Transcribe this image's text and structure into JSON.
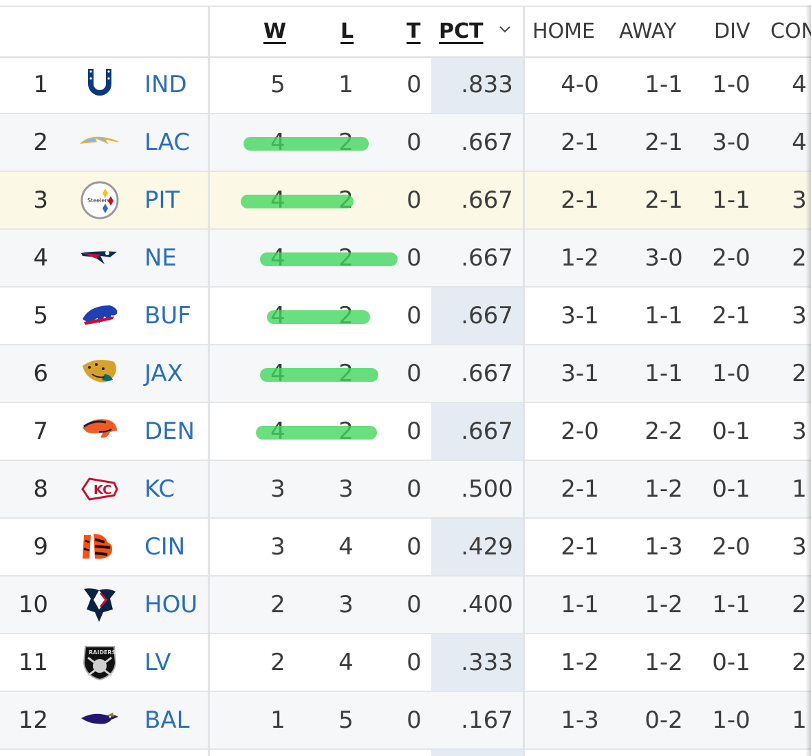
{
  "columns": {
    "w": "W",
    "l": "L",
    "t": "T",
    "pct": "PCT",
    "home": "HOME",
    "away": "AWAY",
    "div": "DIV",
    "conf": "CON"
  },
  "colors": {
    "link": "#2a6ebc",
    "highlight_row": "#fcf8e6",
    "pct_column": "#e4ebf3",
    "marker": "#3fd65a"
  },
  "rows": [
    {
      "rank": "1",
      "team": "IND",
      "logo": "colts-horseshoe-icon",
      "w": "5",
      "l": "1",
      "t": "0",
      "pct": ".833",
      "home": "4-0",
      "away": "1-1",
      "div": "1-0",
      "conf": "4",
      "marked": false
    },
    {
      "rank": "2",
      "team": "LAC",
      "logo": "chargers-bolt-icon",
      "w": "4",
      "l": "2",
      "t": "0",
      "pct": ".667",
      "home": "2-1",
      "away": "2-1",
      "div": "3-0",
      "conf": "4",
      "marked": true
    },
    {
      "rank": "3",
      "team": "PIT",
      "logo": "steelers-logo-icon",
      "w": "4",
      "l": "2",
      "t": "0",
      "pct": ".667",
      "home": "2-1",
      "away": "2-1",
      "div": "1-1",
      "conf": "3",
      "marked": true,
      "highlighted": true
    },
    {
      "rank": "4",
      "team": "NE",
      "logo": "patriots-logo-icon",
      "w": "4",
      "l": "2",
      "t": "0",
      "pct": ".667",
      "home": "1-2",
      "away": "3-0",
      "div": "2-0",
      "conf": "2",
      "marked": true
    },
    {
      "rank": "5",
      "team": "BUF",
      "logo": "bills-buffalo-icon",
      "w": "4",
      "l": "2",
      "t": "0",
      "pct": ".667",
      "home": "3-1",
      "away": "1-1",
      "div": "2-1",
      "conf": "3",
      "marked": true
    },
    {
      "rank": "6",
      "team": "JAX",
      "logo": "jaguars-head-icon",
      "w": "4",
      "l": "2",
      "t": "0",
      "pct": ".667",
      "home": "3-1",
      "away": "1-1",
      "div": "1-0",
      "conf": "2",
      "marked": true
    },
    {
      "rank": "7",
      "team": "DEN",
      "logo": "broncos-horse-icon",
      "w": "4",
      "l": "2",
      "t": "0",
      "pct": ".667",
      "home": "2-0",
      "away": "2-2",
      "div": "0-1",
      "conf": "3",
      "marked": true
    },
    {
      "rank": "8",
      "team": "KC",
      "logo": "chiefs-arrowhead-icon",
      "w": "3",
      "l": "3",
      "t": "0",
      "pct": ".500",
      "home": "2-1",
      "away": "1-2",
      "div": "0-1",
      "conf": "1",
      "marked": false
    },
    {
      "rank": "9",
      "team": "CIN",
      "logo": "bengals-stripes-icon",
      "w": "3",
      "l": "4",
      "t": "0",
      "pct": ".429",
      "home": "2-1",
      "away": "1-3",
      "div": "2-0",
      "conf": "3",
      "marked": false
    },
    {
      "rank": "10",
      "team": "HOU",
      "logo": "texans-bull-icon",
      "w": "2",
      "l": "3",
      "t": "0",
      "pct": ".400",
      "home": "1-1",
      "away": "1-2",
      "div": "1-1",
      "conf": "2",
      "marked": false
    },
    {
      "rank": "11",
      "team": "LV",
      "logo": "raiders-shield-icon",
      "w": "2",
      "l": "4",
      "t": "0",
      "pct": ".333",
      "home": "1-2",
      "away": "1-2",
      "div": "0-1",
      "conf": "2",
      "marked": false
    },
    {
      "rank": "12",
      "team": "BAL",
      "logo": "ravens-bird-icon",
      "w": "1",
      "l": "5",
      "t": "0",
      "pct": ".167",
      "home": "1-3",
      "away": "0-2",
      "div": "1-0",
      "conf": "1",
      "marked": false
    }
  ]
}
